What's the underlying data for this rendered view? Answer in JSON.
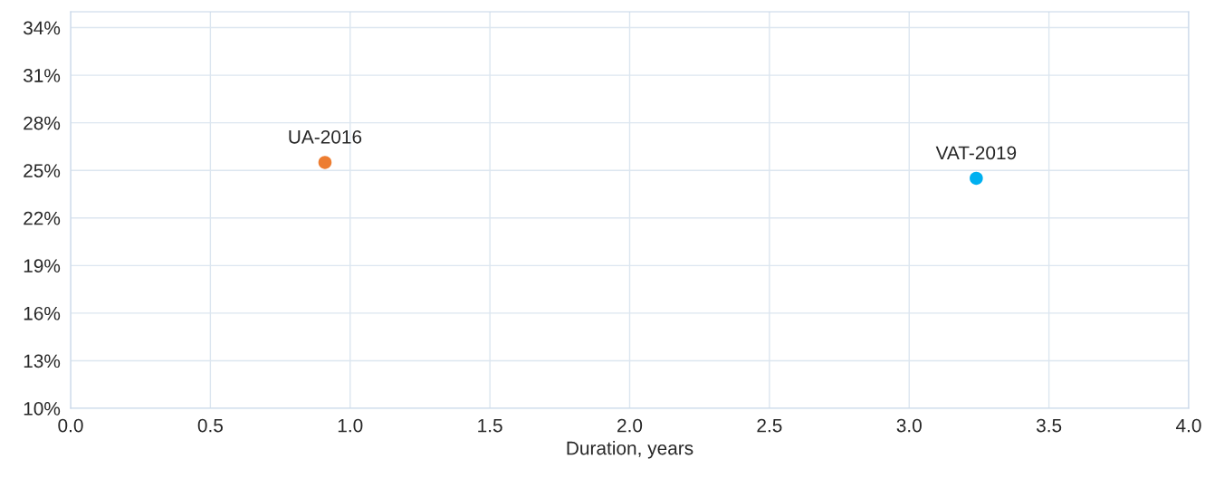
{
  "chart_data": {
    "type": "scatter",
    "xlabel": "Duration, years",
    "series": [
      {
        "name": "UA-2016",
        "color": "#ed7d31",
        "x": [
          0.91
        ],
        "values": [
          25.5
        ]
      },
      {
        "name": "VAT-2019",
        "color": "#00b0f0",
        "x": [
          3.24
        ],
        "values": [
          24.5
        ]
      }
    ],
    "xlim": [
      0,
      4
    ],
    "xticks": [
      {
        "value": 0,
        "label": "0.0"
      },
      {
        "value": 0.5,
        "label": "0.5"
      },
      {
        "value": 1,
        "label": "1.0"
      },
      {
        "value": 1.5,
        "label": "1.5"
      },
      {
        "value": 2,
        "label": "2.0"
      },
      {
        "value": 2.5,
        "label": "2.5"
      },
      {
        "value": 3,
        "label": "3.0"
      },
      {
        "value": 3.5,
        "label": "3.5"
      },
      {
        "value": 4,
        "label": "4.0"
      }
    ],
    "ylim": [
      10,
      35
    ],
    "yticks": [
      {
        "value": 10,
        "label": "10%"
      },
      {
        "value": 13,
        "label": "13%"
      },
      {
        "value": 16,
        "label": "16%"
      },
      {
        "value": 19,
        "label": "19%"
      },
      {
        "value": 22,
        "label": "22%"
      },
      {
        "value": 25,
        "label": "25%"
      },
      {
        "value": 28,
        "label": "28%"
      },
      {
        "value": 31,
        "label": "31%"
      },
      {
        "value": 34,
        "label": "34%"
      }
    ],
    "grid": true,
    "marker": "circle"
  }
}
